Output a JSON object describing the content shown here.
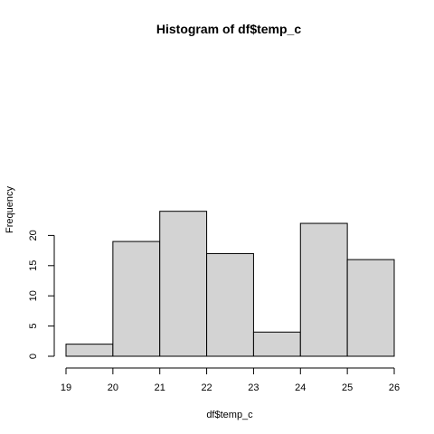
{
  "colors": {
    "bar_fill": "#d3d3d3",
    "bar_stroke": "#000000",
    "background": "#ffffff"
  },
  "chart_data": {
    "type": "bar",
    "title": "Histogram of df$temp_c",
    "xlabel": "df$temp_c",
    "ylabel": "Frequency",
    "bins": [
      {
        "x0": 19,
        "x1": 20,
        "count": 2
      },
      {
        "x0": 20,
        "x1": 21,
        "count": 19
      },
      {
        "x0": 21,
        "x1": 22,
        "count": 24
      },
      {
        "x0": 22,
        "x1": 23,
        "count": 17
      },
      {
        "x0": 23,
        "x1": 24,
        "count": 4
      },
      {
        "x0": 24,
        "x1": 25,
        "count": 22
      },
      {
        "x0": 25,
        "x1": 26,
        "count": 16
      }
    ],
    "xlim": [
      19,
      26
    ],
    "ylim": [
      0,
      25
    ],
    "xticks": [
      19,
      20,
      21,
      22,
      23,
      24,
      25,
      26
    ],
    "yticks": [
      0,
      5,
      10,
      15,
      20
    ],
    "grid": false,
    "legend": "none"
  }
}
